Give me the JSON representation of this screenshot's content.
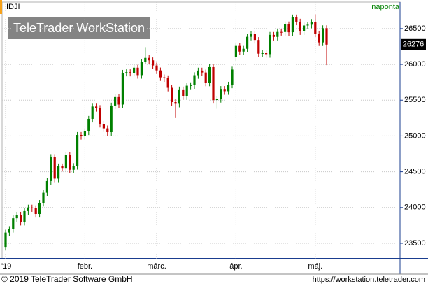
{
  "chart_data": {
    "type": "candlestick",
    "title": "IDJI",
    "subtitle": "naponta",
    "watermark": "TeleTrader WorkStation",
    "categories": [
      "'19",
      null,
      null,
      null,
      null,
      null,
      null,
      null,
      null,
      null,
      null,
      null,
      null,
      null,
      null,
      null,
      null,
      null,
      null,
      null,
      null,
      "febr.",
      null,
      null,
      null,
      null,
      null,
      null,
      null,
      null,
      null,
      null,
      null,
      null,
      null,
      null,
      null,
      null,
      null,
      null,
      "márc.",
      null,
      null,
      null,
      null,
      null,
      null,
      null,
      null,
      null,
      null,
      null,
      null,
      null,
      null,
      null,
      null,
      null,
      null,
      null,
      null,
      "ápr.",
      null,
      null,
      null,
      null,
      null,
      null,
      null,
      null,
      null,
      null,
      null,
      null,
      null,
      null,
      null,
      null,
      null,
      null,
      null,
      null,
      "máj.",
      null,
      null,
      null
    ],
    "open": [
      23450,
      23650,
      23700,
      23850,
      23900,
      23800,
      23950,
      24000,
      23990,
      23910,
      24065,
      24207,
      24370,
      24706,
      24404,
      24575,
      24553,
      24737,
      24528,
      24580,
      25014,
      24999,
      25063,
      25239,
      25411,
      25390,
      25169,
      25106,
      25053,
      25425,
      25543,
      25439,
      25883,
      25891,
      25883,
      25954,
      25850,
      26031,
      26091,
      26057,
      25985,
      25916,
      25819,
      25806,
      25673,
      25473,
      25450,
      25650,
      25554,
      25702,
      25709,
      25849,
      25914,
      25887,
      25745,
      25962,
      25502,
      25516,
      25657,
      25625,
      25717,
      26100,
      26258,
      26179,
      26218,
      26385,
      26425,
      26341,
      26150,
      26157,
      26143,
      26412,
      26384,
      26453,
      26452,
      26559,
      26449,
      26656,
      26597,
      26462,
      26543,
      26554,
      26593,
      26430,
      26307,
      26505
    ],
    "high": [
      23690,
      23740,
      23890,
      23940,
      23940,
      23990,
      24040,
      24040,
      24030,
      24105,
      24247,
      24410,
      24746,
      24746,
      24615,
      24615,
      24777,
      24777,
      24620,
      25054,
      25054,
      25103,
      25279,
      25451,
      25451,
      25430,
      25209,
      25146,
      25465,
      25583,
      25583,
      25923,
      25931,
      25931,
      25994,
      25994,
      26071,
      26241,
      26131,
      26097,
      26025,
      25956,
      25859,
      25846,
      25713,
      25513,
      25690,
      25690,
      25742,
      25749,
      25889,
      25954,
      25954,
      25927,
      26002,
      26002,
      25556,
      25697,
      25697,
      25757,
      25968,
      26298,
      26298,
      26258,
      26425,
      26465,
      26465,
      26381,
      26197,
      26197,
      26452,
      26452,
      26493,
      26493,
      26599,
      26599,
      26696,
      26696,
      26637,
      26583,
      26594,
      26633,
      26700,
      26470,
      26545,
      26545
    ],
    "low": [
      23400,
      23600,
      23650,
      23800,
      23750,
      23750,
      23900,
      23940,
      23860,
      23860,
      24015,
      24157,
      24320,
      24354,
      24354,
      24503,
      24503,
      24478,
      24478,
      24530,
      24949,
      24949,
      25013,
      25189,
      25340,
      25119,
      25056,
      25003,
      25003,
      25375,
      25389,
      25389,
      25833,
      25833,
      25833,
      25800,
      25800,
      26000,
      26007,
      25935,
      25866,
      25769,
      25756,
      25623,
      25423,
      25250,
      25400,
      25504,
      25504,
      25652,
      25659,
      25799,
      25837,
      25695,
      25695,
      25452,
      25380,
      25466,
      25575,
      25575,
      25667,
      26050,
      26129,
      26129,
      26168,
      26335,
      26291,
      26100,
      26100,
      26093,
      26093,
      26334,
      26334,
      26402,
      26402,
      26399,
      26399,
      26547,
      26412,
      26412,
      26493,
      26503,
      26380,
      26257,
      26257,
      25990
    ],
    "close": [
      23650,
      23700,
      23850,
      23900,
      23800,
      23950,
      24000,
      23990,
      23910,
      24065,
      24207,
      24370,
      24706,
      24404,
      24575,
      24553,
      24737,
      24528,
      24580,
      25014,
      24999,
      25063,
      25239,
      25411,
      25390,
      25169,
      25106,
      25053,
      25425,
      25543,
      25439,
      25883,
      25891,
      25883,
      25954,
      25850,
      26031,
      26091,
      26057,
      25985,
      25916,
      25819,
      25806,
      25673,
      25473,
      25450,
      25650,
      25554,
      25702,
      25709,
      25849,
      25914,
      25887,
      25745,
      25962,
      25502,
      25516,
      25657,
      25625,
      25717,
      25928,
      26258,
      26179,
      26218,
      26385,
      26425,
      26341,
      26150,
      26157,
      26143,
      26412,
      26384,
      26453,
      26452,
      26559,
      26449,
      26656,
      26597,
      26462,
      26543,
      26554,
      26593,
      26430,
      26307,
      26505,
      26276
    ],
    "up_color": "#008000",
    "down_color": "#c00000",
    "ylim": [
      23285,
      26870
    ],
    "yticks": [
      23500,
      24000,
      24500,
      25000,
      25500,
      26000,
      26500
    ],
    "grid": true
  },
  "footer": {
    "copyright": "© 2019 TeleTrader Software GmbH",
    "url": "https://workstation.teletrader.com"
  }
}
